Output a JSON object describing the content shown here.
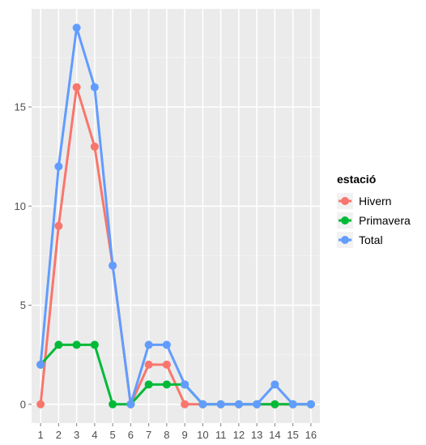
{
  "chart_data": {
    "type": "line",
    "title": "",
    "xlabel": "",
    "ylabel": "",
    "x": [
      1,
      2,
      3,
      4,
      5,
      6,
      7,
      8,
      9,
      10,
      11,
      12,
      13,
      14,
      15,
      16
    ],
    "x_tick_labels": [
      "1",
      "2",
      "3",
      "4",
      "5",
      "6",
      "7",
      "8",
      "9",
      "10",
      "11",
      "12",
      "13",
      "14",
      "15",
      "16"
    ],
    "xlim": [
      0.5,
      16.5
    ],
    "ylim": [
      -0.95,
      19.95
    ],
    "y_ticks": [
      0,
      5,
      10,
      15
    ],
    "y_tick_labels": [
      "0",
      "5",
      "10",
      "15"
    ],
    "grid": true,
    "legend_title": "estació",
    "legend_position": "right",
    "series": [
      {
        "name": "Hivern",
        "color": "#F8766D",
        "values": [
          0,
          9,
          16,
          13,
          7,
          0,
          2,
          2,
          0,
          0,
          0,
          0,
          0,
          0,
          0,
          0
        ]
      },
      {
        "name": "Primavera",
        "color": "#00BA38",
        "values": [
          2,
          3,
          3,
          3,
          0,
          0,
          1,
          1,
          1,
          0,
          0,
          0,
          0,
          0,
          0,
          0
        ]
      },
      {
        "name": "Total",
        "color": "#619CFF",
        "values": [
          2,
          12,
          19,
          16,
          7,
          0,
          3,
          3,
          1,
          0,
          0,
          0,
          0,
          1,
          0,
          0
        ]
      }
    ],
    "colors": {
      "panel": "#EBEBEB",
      "grid_major": "#FFFFFF",
      "grid_minor": "#F2F2F2",
      "tick_text": "#4D4D4D"
    }
  }
}
